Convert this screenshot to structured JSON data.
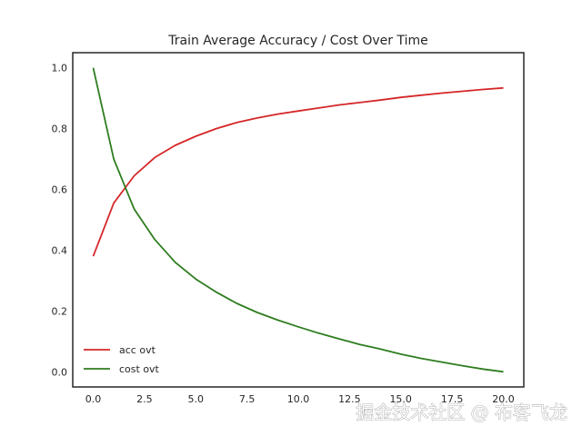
{
  "chart_data": {
    "type": "line",
    "title": "Train Average Accuracy / Cost Over Time",
    "xlabel": "",
    "ylabel": "",
    "xlim": [
      -1,
      21
    ],
    "ylim": [
      -0.05,
      1.05
    ],
    "grid": false,
    "legend_position": "lower-left",
    "x_ticks": [
      0.0,
      2.5,
      5.0,
      7.5,
      10.0,
      12.5,
      15.0,
      17.5,
      20.0
    ],
    "x_tick_labels": [
      "0.0",
      "2.5",
      "5.0",
      "7.5",
      "10.0",
      "12.5",
      "15.0",
      "17.5",
      "20.0"
    ],
    "y_ticks": [
      0.0,
      0.2,
      0.4,
      0.6,
      0.8,
      1.0
    ],
    "y_tick_labels": [
      "0.0",
      "0.2",
      "0.4",
      "0.6",
      "0.8",
      "1.0"
    ],
    "x": [
      0,
      1,
      2,
      3,
      4,
      5,
      6,
      7,
      8,
      9,
      10,
      11,
      12,
      13,
      14,
      15,
      16,
      17,
      18,
      19,
      20
    ],
    "series": [
      {
        "name": "acc ovt",
        "color": "#d62728",
        "values": [
          0.38,
          0.555,
          0.645,
          0.705,
          0.745,
          0.775,
          0.8,
          0.82,
          0.835,
          0.848,
          0.858,
          0.868,
          0.878,
          0.886,
          0.894,
          0.903,
          0.91,
          0.917,
          0.923,
          0.929,
          0.934
        ]
      },
      {
        "name": "cost ovt",
        "color": "#2e7d1f",
        "values": [
          1.0,
          0.7,
          0.535,
          0.435,
          0.36,
          0.305,
          0.262,
          0.225,
          0.195,
          0.17,
          0.148,
          0.127,
          0.108,
          0.09,
          0.075,
          0.058,
          0.044,
          0.032,
          0.02,
          0.009,
          0.0
        ]
      }
    ]
  },
  "watermark": "掘金技术社区 @ 布客飞龙"
}
